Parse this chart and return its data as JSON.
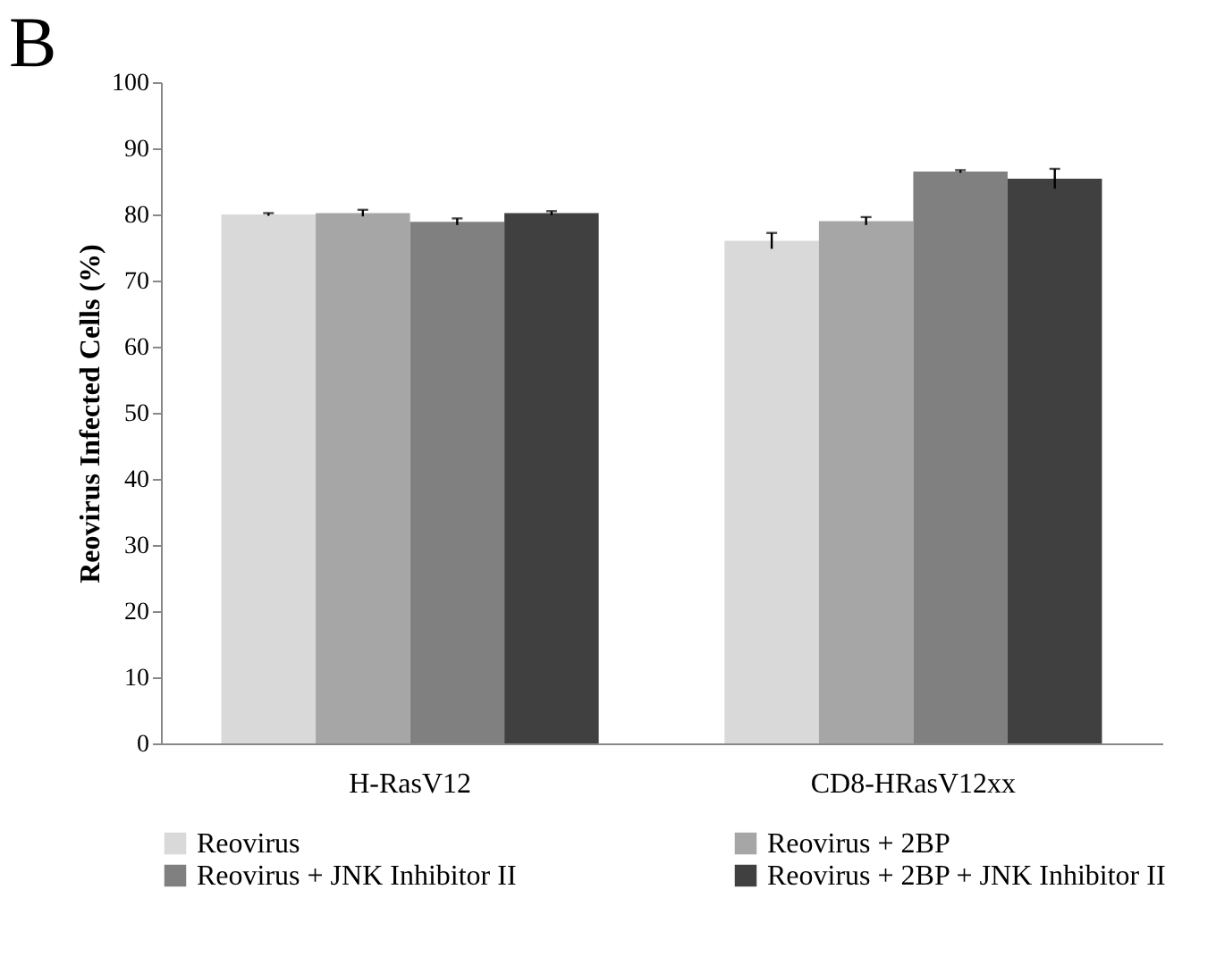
{
  "chart_data": {
    "type": "bar",
    "title": "B",
    "ylabel": "Reovirus Infected Cells (%)",
    "categories": [
      "H-RasV12",
      "CD8-HRasV12xx"
    ],
    "series": [
      {
        "name": "Reovirus",
        "color": "#d9d9d9",
        "values": [
          80.0,
          76.0
        ],
        "errors": [
          0.2,
          1.2
        ]
      },
      {
        "name": "Reovirus + 2BP",
        "color": "#a6a6a6",
        "values": [
          80.2,
          79.0
        ],
        "errors": [
          0.5,
          0.6
        ]
      },
      {
        "name": "Reovirus + JNK Inhibitor II",
        "color": "#808080",
        "values": [
          78.9,
          86.5
        ],
        "errors": [
          0.5,
          0.2
        ]
      },
      {
        "name": "Reovirus + 2BP + JNK Inhibitor II",
        "color": "#404040",
        "values": [
          80.2,
          85.4
        ],
        "errors": [
          0.3,
          1.5
        ]
      }
    ],
    "ylim": [
      0,
      100
    ],
    "yticks": [
      0,
      10,
      20,
      30,
      40,
      50,
      60,
      70,
      80,
      90,
      100
    ],
    "grid": false,
    "legend": "bottom"
  }
}
